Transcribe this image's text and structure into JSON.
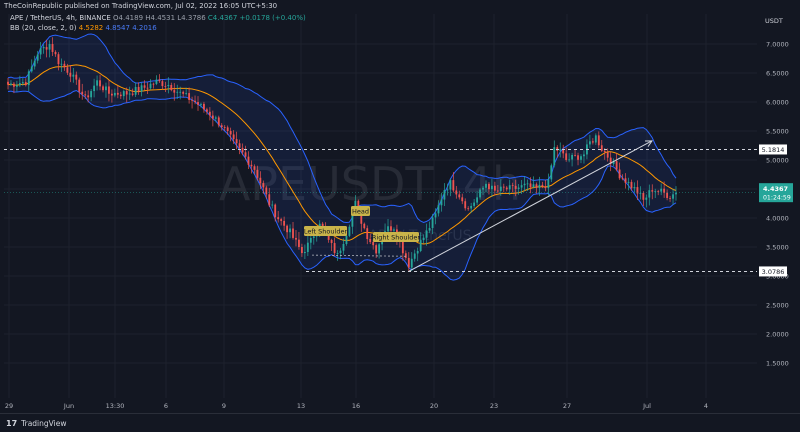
{
  "publisher": "TheCoinRepublic published on TradingView.com, Jul 02, 2022 16:05 UTC+5:30",
  "legend": {
    "symbol": "APE / TetherUS, 4h, BINANCE",
    "open": "O4.4189",
    "high": "H4.4531",
    "low": "L4.3786",
    "close": "C4.4367",
    "change": "+0.0178 (+0.40%)",
    "bb_label": "BB (20, close, 2, 0)",
    "bb_basis": "4.5282",
    "bb_upper": "4.8547",
    "bb_lower": "4.2016"
  },
  "watermark": "APEUSDT, 4h",
  "watermark_sub": "APE / TetherUS",
  "currency": "USDT",
  "price_tags": {
    "resistance": "5.1814",
    "support": "3.0786",
    "last": "4.4367",
    "countdown": "01:24:59"
  },
  "annotations": {
    "left_shoulder": "Left Shoulder",
    "head": "Head",
    "right_shoulder": "Right Shoulder"
  },
  "footer": {
    "brand": "TradingView"
  },
  "colors": {
    "up": "#26a69a",
    "down": "#ef5350",
    "bb_band": "#2962ff",
    "bb_basis": "#ff9800",
    "label_bg": "#c9b44a"
  },
  "chart_data": {
    "type": "candlestick",
    "y_ticks": [
      "7.0000",
      "6.5000",
      "6.0000",
      "5.5000",
      "5.0000",
      "4.5000",
      "4.0000",
      "3.5000",
      "3.0000",
      "2.5000",
      "2.0000",
      "1.5000"
    ],
    "ylim": [
      1.2,
      7.4
    ],
    "x_ticks": [
      "29",
      "Jun",
      "13:30",
      "6",
      "9",
      "13",
      "16",
      "20",
      "23",
      "27",
      "Jul",
      "4"
    ],
    "levels": {
      "resistance": 5.1814,
      "support": 3.0786,
      "last": 4.4367
    },
    "anchors": [
      [
        0,
        6.3
      ],
      [
        6,
        6.35
      ],
      [
        10,
        6.85
      ],
      [
        14,
        7.0
      ],
      [
        17,
        6.7
      ],
      [
        21,
        6.5
      ],
      [
        26,
        6.05
      ],
      [
        30,
        6.35
      ],
      [
        34,
        6.15
      ],
      [
        40,
        6.15
      ],
      [
        46,
        6.25
      ],
      [
        50,
        6.35
      ],
      [
        54,
        6.3
      ],
      [
        58,
        6.15
      ],
      [
        63,
        6.0
      ],
      [
        68,
        5.8
      ],
      [
        72,
        5.6
      ],
      [
        76,
        5.3
      ],
      [
        80,
        5.05
      ],
      [
        83,
        4.85
      ],
      [
        86,
        4.5
      ],
      [
        88,
        4.25
      ],
      [
        91,
        4.0
      ],
      [
        95,
        3.75
      ],
      [
        99,
        3.4
      ],
      [
        102,
        3.6
      ],
      [
        105,
        3.95
      ],
      [
        108,
        3.6
      ],
      [
        111,
        3.35
      ],
      [
        114,
        3.75
      ],
      [
        117,
        4.25
      ],
      [
        119,
        3.95
      ],
      [
        121,
        3.7
      ],
      [
        124,
        3.45
      ],
      [
        127,
        3.8
      ],
      [
        130,
        3.85
      ],
      [
        133,
        3.45
      ],
      [
        135,
        3.2
      ],
      [
        138,
        3.5
      ],
      [
        141,
        3.75
      ],
      [
        144,
        4.05
      ],
      [
        147,
        4.5
      ],
      [
        149,
        4.6
      ],
      [
        152,
        4.4
      ],
      [
        155,
        4.15
      ],
      [
        158,
        4.35
      ],
      [
        161,
        4.6
      ],
      [
        164,
        4.45
      ],
      [
        167,
        4.5
      ],
      [
        170,
        4.5
      ],
      [
        174,
        4.55
      ],
      [
        178,
        4.5
      ],
      [
        182,
        4.6
      ],
      [
        184,
        5.2
      ],
      [
        186,
        5.15
      ],
      [
        188,
        5.0
      ],
      [
        191,
        5.05
      ],
      [
        194,
        5.1
      ],
      [
        196,
        5.3
      ],
      [
        198,
        5.4
      ],
      [
        200,
        5.2
      ],
      [
        203,
        5.0
      ],
      [
        206,
        4.75
      ],
      [
        209,
        4.6
      ],
      [
        212,
        4.45
      ],
      [
        214,
        4.3
      ],
      [
        217,
        4.5
      ],
      [
        220,
        4.45
      ],
      [
        223,
        4.38
      ],
      [
        225,
        4.44
      ]
    ]
  }
}
